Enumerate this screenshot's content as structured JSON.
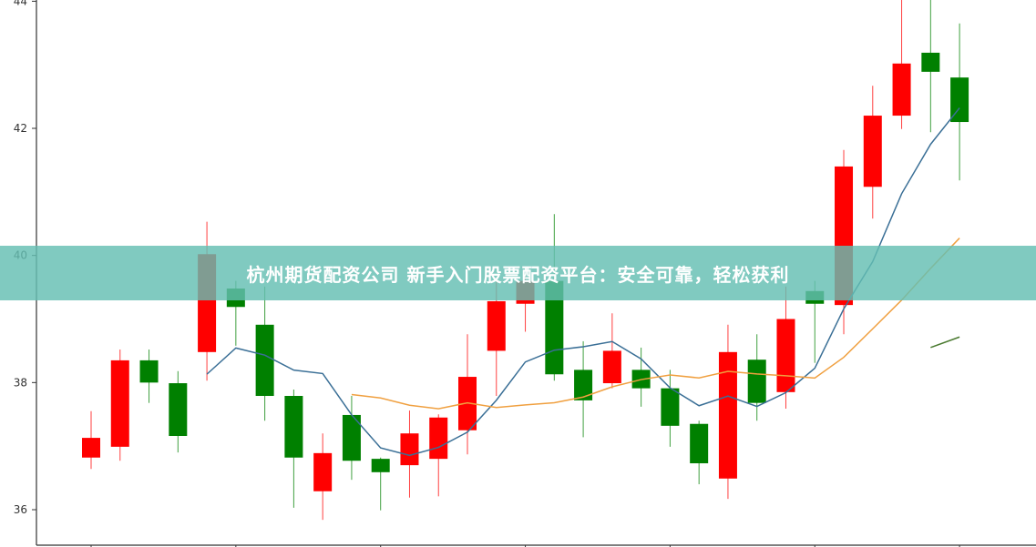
{
  "chart_data": {
    "type": "candlestick",
    "title": "",
    "xlabel": "",
    "ylabel": "",
    "ylim": [
      35.6,
      44.0
    ],
    "yticks": [
      36,
      38,
      40,
      42,
      44
    ],
    "grid": false,
    "up_color": "#ff0000",
    "down_color": "#008000",
    "ma_periods": [
      5,
      10,
      30
    ],
    "ma_colors": [
      "#3a6f96",
      "#f0a040",
      "#4a7a30"
    ],
    "candles": [
      {
        "o": 36.82,
        "h": 37.55,
        "l": 36.64,
        "c": 37.13
      },
      {
        "o": 36.99,
        "h": 38.52,
        "l": 36.77,
        "c": 38.35
      },
      {
        "o": 38.35,
        "h": 38.52,
        "l": 37.68,
        "c": 38.0
      },
      {
        "o": 37.99,
        "h": 38.18,
        "l": 36.9,
        "c": 37.16
      },
      {
        "o": 38.48,
        "h": 40.53,
        "l": 38.03,
        "c": 40.02
      },
      {
        "o": 39.48,
        "h": 39.6,
        "l": 38.58,
        "c": 39.19
      },
      {
        "o": 38.91,
        "h": 39.51,
        "l": 37.4,
        "c": 37.79
      },
      {
        "o": 37.79,
        "h": 37.89,
        "l": 36.03,
        "c": 36.82
      },
      {
        "o": 36.29,
        "h": 37.2,
        "l": 35.84,
        "c": 36.89
      },
      {
        "o": 37.49,
        "h": 37.79,
        "l": 36.47,
        "c": 36.77
      },
      {
        "o": 36.8,
        "h": 36.82,
        "l": 35.99,
        "c": 36.59
      },
      {
        "o": 36.7,
        "h": 37.56,
        "l": 36.19,
        "c": 37.2
      },
      {
        "o": 36.8,
        "h": 37.5,
        "l": 36.21,
        "c": 37.45
      },
      {
        "o": 37.25,
        "h": 38.76,
        "l": 36.87,
        "c": 38.09
      },
      {
        "o": 38.5,
        "h": 39.6,
        "l": 37.79,
        "c": 39.28
      },
      {
        "o": 39.24,
        "h": 39.7,
        "l": 38.8,
        "c": 39.6
      },
      {
        "o": 39.6,
        "h": 40.65,
        "l": 38.03,
        "c": 38.13
      },
      {
        "o": 38.2,
        "h": 38.65,
        "l": 37.14,
        "c": 37.72
      },
      {
        "o": 37.99,
        "h": 39.09,
        "l": 37.91,
        "c": 38.5
      },
      {
        "o": 38.2,
        "h": 38.55,
        "l": 37.62,
        "c": 37.91
      },
      {
        "o": 37.91,
        "h": 38.2,
        "l": 36.99,
        "c": 37.32
      },
      {
        "o": 37.35,
        "h": 37.4,
        "l": 36.4,
        "c": 36.73
      },
      {
        "o": 36.49,
        "h": 38.91,
        "l": 36.17,
        "c": 38.48
      },
      {
        "o": 38.36,
        "h": 38.76,
        "l": 37.4,
        "c": 37.68
      },
      {
        "o": 37.85,
        "h": 39.51,
        "l": 37.59,
        "c": 39.0
      },
      {
        "o": 39.44,
        "h": 39.6,
        "l": 38.31,
        "c": 39.24
      },
      {
        "o": 39.22,
        "h": 41.66,
        "l": 38.76,
        "c": 41.4
      },
      {
        "o": 41.08,
        "h": 42.67,
        "l": 40.58,
        "c": 42.2
      },
      {
        "o": 42.2,
        "h": 44.1,
        "l": 41.99,
        "c": 43.02
      },
      {
        "o": 43.19,
        "h": 44.1,
        "l": 41.94,
        "c": 42.89
      },
      {
        "o": 42.8,
        "h": 43.65,
        "l": 41.18,
        "c": 42.1
      }
    ]
  },
  "banner": {
    "text": "杭州期货配资公司 新手入门股票配资平台：安全可靠，轻松获利",
    "color": "#64beb2"
  }
}
